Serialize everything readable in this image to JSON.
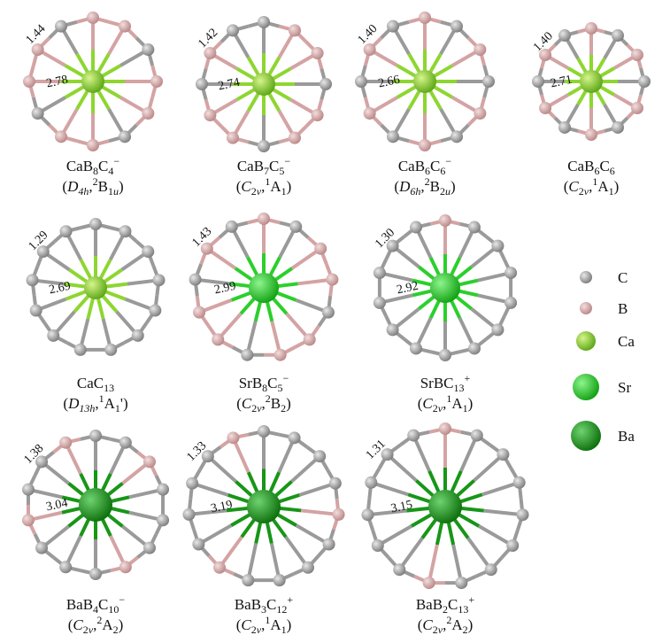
{
  "structures": [
    {
      "formula": [
        {
          "t": "CaB"
        },
        {
          "sub": "8"
        },
        {
          "t": "C"
        },
        {
          "sub": "4"
        },
        {
          "sup": "−"
        }
      ],
      "state": [
        {
          "t": "("
        },
        {
          "i": "D"
        },
        {
          "isub": "4h"
        },
        {
          "t": ","
        },
        {
          "sup": "2"
        },
        {
          "t": "B"
        },
        {
          "sub": "1"
        },
        {
          "isub": "u"
        },
        {
          "t": ")"
        }
      ],
      "ring_bond": "1.44",
      "radial_bond": "2.78"
    },
    {
      "formula": [
        {
          "t": "CaB"
        },
        {
          "sub": "7"
        },
        {
          "t": "C"
        },
        {
          "sub": "5"
        },
        {
          "sup": "−"
        }
      ],
      "state": [
        {
          "t": "("
        },
        {
          "i": "C"
        },
        {
          "sub": "2"
        },
        {
          "isub": "v"
        },
        {
          "t": ","
        },
        {
          "sup": "1"
        },
        {
          "t": "A"
        },
        {
          "sub": "1"
        },
        {
          "t": ")"
        }
      ],
      "ring_bond": "1.42",
      "radial_bond": "2.74"
    },
    {
      "formula": [
        {
          "t": "CaB"
        },
        {
          "sub": "6"
        },
        {
          "t": "C"
        },
        {
          "sub": "6"
        },
        {
          "sup": "−"
        }
      ],
      "state": [
        {
          "t": "("
        },
        {
          "i": "D"
        },
        {
          "isub": "6h"
        },
        {
          "t": ","
        },
        {
          "sup": "2"
        },
        {
          "t": "B"
        },
        {
          "sub": "2"
        },
        {
          "isub": "u"
        },
        {
          "t": ")"
        }
      ],
      "ring_bond": "1.40",
      "radial_bond": "2.66"
    },
    {
      "formula": [
        {
          "t": "CaB"
        },
        {
          "sub": "6"
        },
        {
          "t": "C"
        },
        {
          "sub": "6"
        }
      ],
      "state": [
        {
          "t": "("
        },
        {
          "i": "C"
        },
        {
          "sub": "2"
        },
        {
          "isub": "v"
        },
        {
          "t": ","
        },
        {
          "sup": "1"
        },
        {
          "t": "A"
        },
        {
          "sub": "1"
        },
        {
          "t": ")"
        }
      ],
      "ring_bond": "1.40",
      "radial_bond": "2.71"
    },
    {
      "formula": [
        {
          "t": "CaC"
        },
        {
          "sub": "13"
        }
      ],
      "state": [
        {
          "t": "("
        },
        {
          "i": "D"
        },
        {
          "isub": "13h"
        },
        {
          "t": ","
        },
        {
          "sup": "1"
        },
        {
          "t": "A"
        },
        {
          "sub": "1"
        },
        {
          "t": "')"
        }
      ],
      "ring_bond": "1.29",
      "radial_bond": "2.69"
    },
    {
      "formula": [
        {
          "t": "SrB"
        },
        {
          "sub": "8"
        },
        {
          "t": "C"
        },
        {
          "sub": "5"
        },
        {
          "sup": "−"
        }
      ],
      "state": [
        {
          "t": "("
        },
        {
          "i": "C"
        },
        {
          "sub": "2"
        },
        {
          "isub": "v"
        },
        {
          "t": ","
        },
        {
          "sup": "2"
        },
        {
          "t": "B"
        },
        {
          "sub": "2"
        },
        {
          "t": ")"
        }
      ],
      "ring_bond": "1.43",
      "radial_bond": "2.99"
    },
    {
      "formula": [
        {
          "t": "SrBC"
        },
        {
          "sub": "13"
        },
        {
          "sup": "+"
        }
      ],
      "state": [
        {
          "t": "("
        },
        {
          "i": "C"
        },
        {
          "sub": "2"
        },
        {
          "isub": "v"
        },
        {
          "t": ","
        },
        {
          "sup": "1"
        },
        {
          "t": "A"
        },
        {
          "sub": "1"
        },
        {
          "t": ")"
        }
      ],
      "ring_bond": "1.30",
      "radial_bond": "2.92"
    },
    {
      "formula": [
        {
          "t": "BaB"
        },
        {
          "sub": "4"
        },
        {
          "t": "C"
        },
        {
          "sub": "10"
        },
        {
          "sup": "−"
        }
      ],
      "state": [
        {
          "t": "("
        },
        {
          "i": "C"
        },
        {
          "sub": "2"
        },
        {
          "isub": "v"
        },
        {
          "t": ","
        },
        {
          "sup": "2"
        },
        {
          "t": "A"
        },
        {
          "sub": "2"
        },
        {
          "t": ")"
        }
      ],
      "ring_bond": "1.38",
      "radial_bond": "3.04"
    },
    {
      "formula": [
        {
          "t": "BaB"
        },
        {
          "sub": "3"
        },
        {
          "t": "C"
        },
        {
          "sub": "12"
        },
        {
          "sup": "+"
        }
      ],
      "state": [
        {
          "t": "("
        },
        {
          "i": "C"
        },
        {
          "sub": "2"
        },
        {
          "isub": "v"
        },
        {
          "t": ","
        },
        {
          "sup": "1"
        },
        {
          "t": "A"
        },
        {
          "sub": "1"
        },
        {
          "t": ")"
        }
      ],
      "ring_bond": "1.33",
      "radial_bond": "3.19"
    },
    {
      "formula": [
        {
          "t": "BaB"
        },
        {
          "sub": "2"
        },
        {
          "t": "C"
        },
        {
          "sub": "13"
        },
        {
          "sup": "+"
        }
      ],
      "state": [
        {
          "t": "("
        },
        {
          "i": "C"
        },
        {
          "sub": "2"
        },
        {
          "isub": "v"
        },
        {
          "t": ","
        },
        {
          "sup": "2"
        },
        {
          "t": "A"
        },
        {
          "sub": "2"
        },
        {
          "t": ")"
        }
      ],
      "ring_bond": "1.31",
      "radial_bond": "3.15"
    }
  ],
  "legend": [
    "C",
    "B",
    "Ca",
    "Sr",
    "Ba"
  ]
}
